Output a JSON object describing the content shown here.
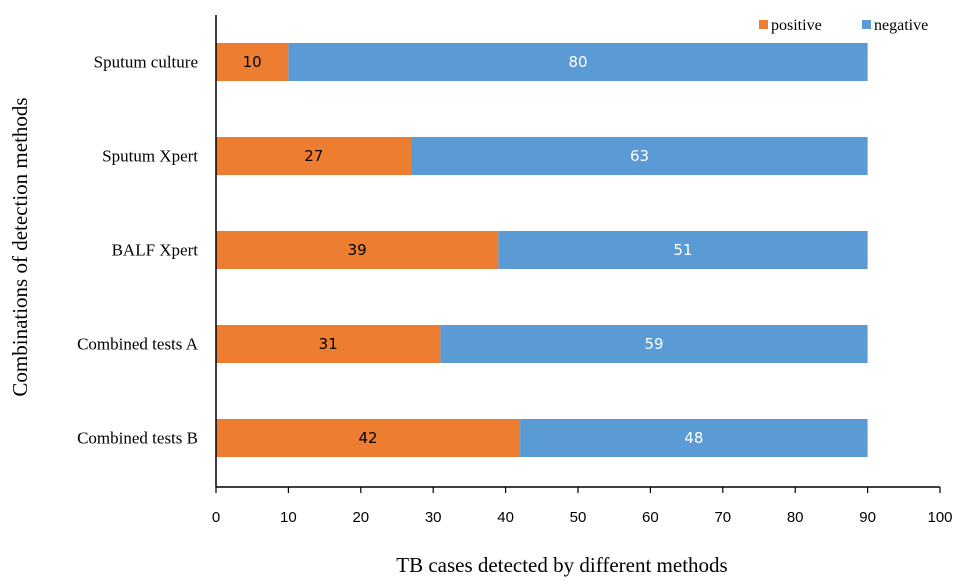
{
  "chart_data": {
    "type": "bar",
    "orientation": "horizontal",
    "stacked": true,
    "title": "",
    "xlabel": "TB cases detected by different methods",
    "ylabel": "Combinations of detection methods",
    "categories": [
      "Sputum culture",
      "Sputum Xpert",
      "BALF Xpert",
      "Combined tests A",
      "Combined tests B"
    ],
    "series": [
      {
        "name": "positive",
        "color": "#ED7D31",
        "label_color": "#000000",
        "values": [
          10,
          27,
          39,
          31,
          42
        ]
      },
      {
        "name": "negative",
        "color": "#5B9BD5",
        "label_color": "#ffffff",
        "values": [
          80,
          63,
          51,
          59,
          48
        ]
      }
    ],
    "xlim": [
      0,
      100
    ],
    "xticks": [
      0,
      10,
      20,
      30,
      40,
      50,
      60,
      70,
      80,
      90,
      100
    ],
    "grid": false,
    "data_labels": true,
    "legend_position": "top-right"
  }
}
